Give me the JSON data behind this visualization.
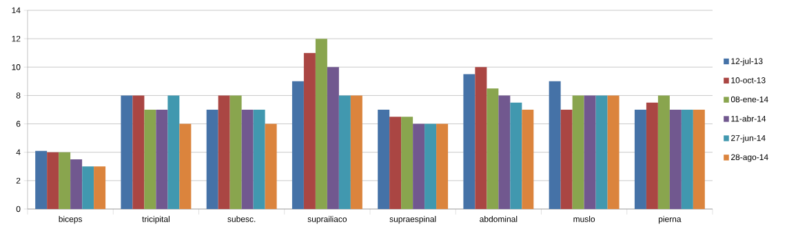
{
  "chart_data": {
    "type": "bar",
    "categories": [
      "biceps",
      "tricipital",
      "subesc.",
      "suprailiaco",
      "supraespinal",
      "abdominal",
      "muslo",
      "pierna"
    ],
    "series": [
      {
        "name": "12-jul-13",
        "color": "#4572a7",
        "values": [
          4.1,
          8,
          7,
          9,
          7,
          9.5,
          9,
          7
        ]
      },
      {
        "name": "10-oct-13",
        "color": "#aa4643",
        "values": [
          4,
          8,
          8,
          11,
          6.5,
          10,
          7,
          7.5
        ]
      },
      {
        "name": "08-ene-14",
        "color": "#89a54e",
        "values": [
          4,
          7,
          8,
          12,
          6.5,
          8.5,
          8,
          8
        ]
      },
      {
        "name": "11-abr-14",
        "color": "#71588f",
        "values": [
          3.5,
          7,
          7,
          10,
          6,
          8,
          8,
          7
        ]
      },
      {
        "name": "27-jun-14",
        "color": "#4198af",
        "values": [
          3,
          8,
          7,
          8,
          6,
          7.5,
          8,
          7
        ]
      },
      {
        "name": "28-ago-14",
        "color": "#db843d",
        "values": [
          3,
          6,
          6,
          8,
          6,
          7,
          8,
          7
        ]
      }
    ],
    "ylim": [
      0,
      14
    ],
    "yticks": [
      0,
      2,
      4,
      6,
      8,
      10,
      12,
      14
    ],
    "grid": "y",
    "legend": "right"
  }
}
